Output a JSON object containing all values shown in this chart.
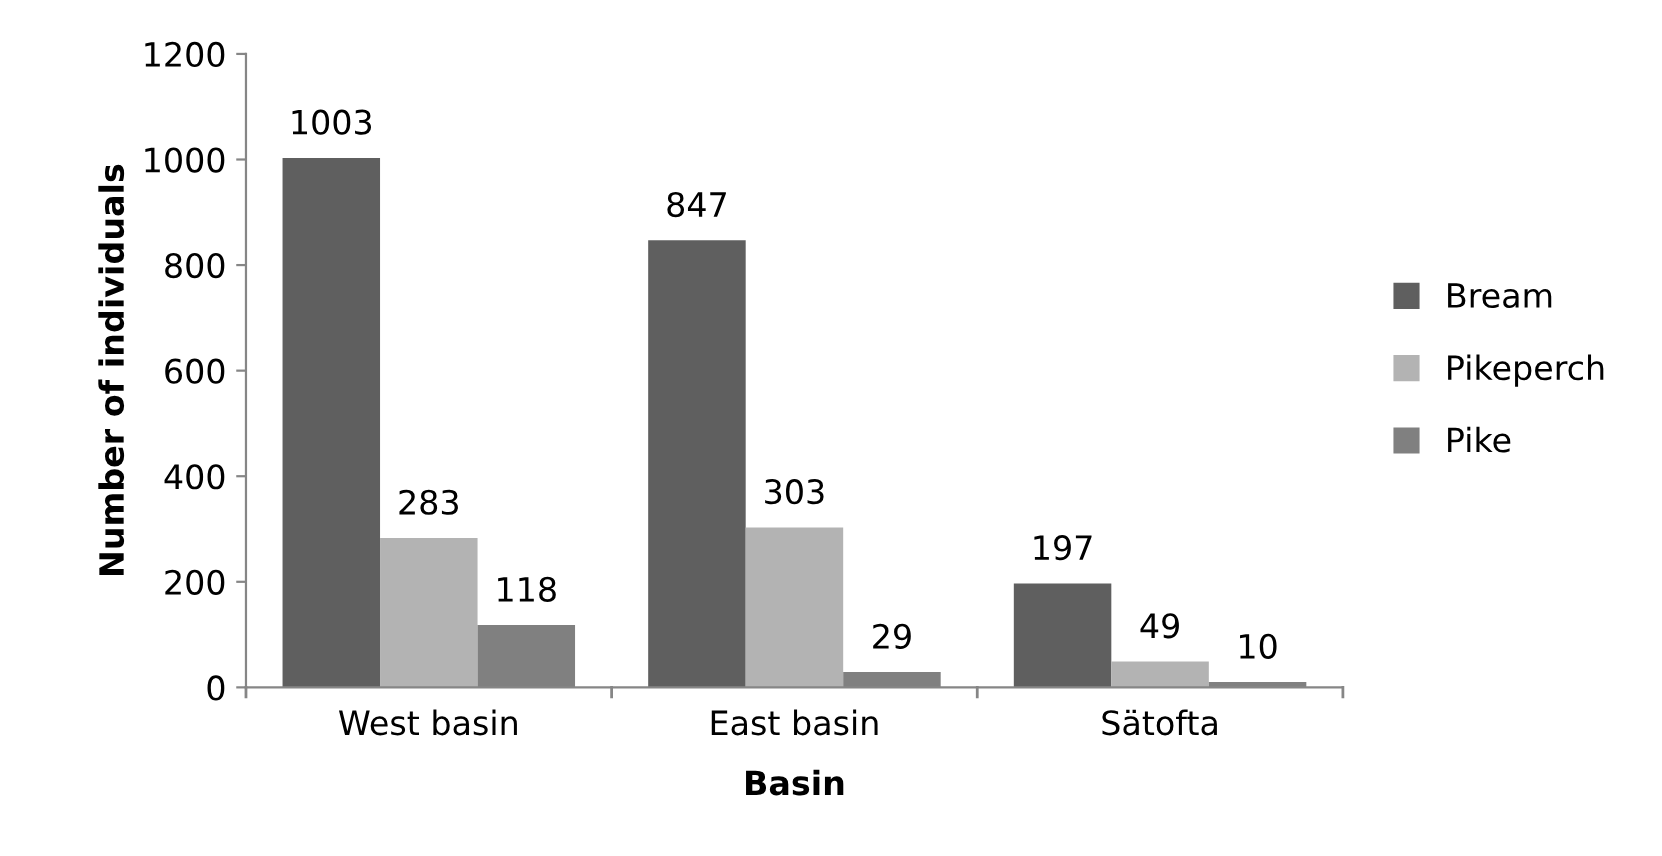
{
  "chart_data": {
    "type": "bar",
    "xlabel": "Basin",
    "ylabel": "Number of individuals",
    "categories": [
      "West basin",
      "East basin",
      "Sätofta"
    ],
    "series": [
      {
        "name": "Bream",
        "color": "#5f5f5f",
        "values": [
          1003,
          847,
          197
        ]
      },
      {
        "name": "Pikeperch",
        "color": "#b3b3b3",
        "values": [
          283,
          303,
          49
        ]
      },
      {
        "name": "Pike",
        "color": "#808080",
        "values": [
          118,
          29,
          10
        ]
      }
    ],
    "ylim": [
      0,
      1200
    ],
    "yticks": [
      0,
      200,
      400,
      600,
      800,
      1000,
      1200
    ],
    "grid": false,
    "legend": "right",
    "data_labels": true
  }
}
